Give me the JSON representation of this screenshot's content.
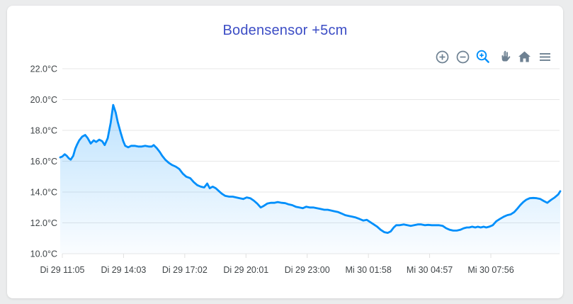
{
  "page": {
    "background": "#ebeced"
  },
  "card": {
    "background": "#ffffff"
  },
  "header": {
    "title": "Bodensensor +5cm",
    "title_color": "#3c4dc5"
  },
  "toolbar": {
    "icon_color": "#6E8192",
    "selected_color": "#008FFB",
    "icons": [
      {
        "name": "zoom-in-icon",
        "selected": false
      },
      {
        "name": "zoom-out-icon",
        "selected": false
      },
      {
        "name": "selection-zoom-icon",
        "selected": true
      },
      {
        "name": "pan-icon",
        "selected": false
      },
      {
        "name": "home-icon",
        "selected": false
      },
      {
        "name": "menu-icon",
        "selected": false
      }
    ]
  },
  "chart_data": {
    "type": "area",
    "title": "Bodensensor +5cm",
    "ylabel": "",
    "xlabel": "",
    "y_unit": "°C",
    "ylim": [
      10,
      22
    ],
    "y_tick_labels": [
      "22.0°C",
      "20.0°C",
      "18.0°C",
      "16.0°C",
      "14.0°C",
      "12.0°C",
      "10.0°C"
    ],
    "x_tick_labels": [
      "Di 29 11:05",
      "Di 29 14:03",
      "Di 29 17:02",
      "Di 29 20:01",
      "Di 29 23:00",
      "Mi 30 01:58",
      "Mi 30 04:57",
      "Mi 30 07:56"
    ],
    "grid": "horizontal",
    "legend": "none",
    "line_color": "#008FFB",
    "fill_gradient_top": "rgba(0,143,251,0.26)",
    "fill_gradient_bottom": "rgba(0,143,251,0.02)",
    "series": [
      {
        "name": "Bodensensor +5cm",
        "points": [
          [
            0,
            16.25
          ],
          [
            0.004,
            16.3
          ],
          [
            0.009,
            16.45
          ],
          [
            0.013,
            16.35
          ],
          [
            0.017,
            16.2
          ],
          [
            0.021,
            16.1
          ],
          [
            0.026,
            16.35
          ],
          [
            0.03,
            16.8
          ],
          [
            0.034,
            17.1
          ],
          [
            0.038,
            17.35
          ],
          [
            0.044,
            17.6
          ],
          [
            0.05,
            17.7
          ],
          [
            0.055,
            17.5
          ],
          [
            0.061,
            17.15
          ],
          [
            0.067,
            17.35
          ],
          [
            0.072,
            17.25
          ],
          [
            0.078,
            17.4
          ],
          [
            0.084,
            17.3
          ],
          [
            0.089,
            17.05
          ],
          [
            0.095,
            17.5
          ],
          [
            0.101,
            18.5
          ],
          [
            0.106,
            19.65
          ],
          [
            0.111,
            19.15
          ],
          [
            0.115,
            18.55
          ],
          [
            0.121,
            17.85
          ],
          [
            0.126,
            17.3
          ],
          [
            0.13,
            17.0
          ],
          [
            0.136,
            16.9
          ],
          [
            0.142,
            17.0
          ],
          [
            0.149,
            17.0
          ],
          [
            0.156,
            16.95
          ],
          [
            0.163,
            16.95
          ],
          [
            0.17,
            17.0
          ],
          [
            0.177,
            16.95
          ],
          [
            0.183,
            16.95
          ],
          [
            0.187,
            17.05
          ],
          [
            0.193,
            16.85
          ],
          [
            0.199,
            16.6
          ],
          [
            0.204,
            16.35
          ],
          [
            0.21,
            16.1
          ],
          [
            0.217,
            15.9
          ],
          [
            0.224,
            15.75
          ],
          [
            0.231,
            15.65
          ],
          [
            0.238,
            15.5
          ],
          [
            0.245,
            15.2
          ],
          [
            0.252,
            15.0
          ],
          [
            0.26,
            14.9
          ],
          [
            0.267,
            14.65
          ],
          [
            0.274,
            14.45
          ],
          [
            0.281,
            14.35
          ],
          [
            0.288,
            14.3
          ],
          [
            0.294,
            14.55
          ],
          [
            0.299,
            14.25
          ],
          [
            0.305,
            14.35
          ],
          [
            0.311,
            14.25
          ],
          [
            0.316,
            14.1
          ],
          [
            0.323,
            13.9
          ],
          [
            0.33,
            13.75
          ],
          [
            0.338,
            13.7
          ],
          [
            0.345,
            13.7
          ],
          [
            0.352,
            13.65
          ],
          [
            0.359,
            13.6
          ],
          [
            0.366,
            13.55
          ],
          [
            0.373,
            13.65
          ],
          [
            0.38,
            13.6
          ],
          [
            0.387,
            13.45
          ],
          [
            0.394,
            13.25
          ],
          [
            0.401,
            13.0
          ],
          [
            0.407,
            13.1
          ],
          [
            0.414,
            13.25
          ],
          [
            0.421,
            13.3
          ],
          [
            0.428,
            13.3
          ],
          [
            0.435,
            13.35
          ],
          [
            0.443,
            13.3
          ],
          [
            0.45,
            13.28
          ],
          [
            0.457,
            13.2
          ],
          [
            0.464,
            13.15
          ],
          [
            0.471,
            13.05
          ],
          [
            0.478,
            13.0
          ],
          [
            0.485,
            12.95
          ],
          [
            0.492,
            13.05
          ],
          [
            0.499,
            13.0
          ],
          [
            0.506,
            13.0
          ],
          [
            0.513,
            12.95
          ],
          [
            0.521,
            12.9
          ],
          [
            0.528,
            12.85
          ],
          [
            0.535,
            12.85
          ],
          [
            0.542,
            12.8
          ],
          [
            0.549,
            12.75
          ],
          [
            0.556,
            12.7
          ],
          [
            0.563,
            12.6
          ],
          [
            0.57,
            12.5
          ],
          [
            0.577,
            12.45
          ],
          [
            0.584,
            12.4
          ],
          [
            0.591,
            12.35
          ],
          [
            0.599,
            12.25
          ],
          [
            0.606,
            12.15
          ],
          [
            0.613,
            12.2
          ],
          [
            0.62,
            12.05
          ],
          [
            0.627,
            11.9
          ],
          [
            0.634,
            11.75
          ],
          [
            0.641,
            11.55
          ],
          [
            0.648,
            11.4
          ],
          [
            0.655,
            11.35
          ],
          [
            0.661,
            11.45
          ],
          [
            0.667,
            11.7
          ],
          [
            0.672,
            11.85
          ],
          [
            0.679,
            11.85
          ],
          [
            0.687,
            11.9
          ],
          [
            0.694,
            11.85
          ],
          [
            0.701,
            11.8
          ],
          [
            0.708,
            11.85
          ],
          [
            0.715,
            11.9
          ],
          [
            0.722,
            11.9
          ],
          [
            0.729,
            11.85
          ],
          [
            0.736,
            11.87
          ],
          [
            0.743,
            11.85
          ],
          [
            0.75,
            11.85
          ],
          [
            0.757,
            11.85
          ],
          [
            0.765,
            11.8
          ],
          [
            0.772,
            11.65
          ],
          [
            0.779,
            11.55
          ],
          [
            0.786,
            11.5
          ],
          [
            0.793,
            11.5
          ],
          [
            0.8,
            11.55
          ],
          [
            0.807,
            11.65
          ],
          [
            0.813,
            11.7
          ],
          [
            0.818,
            11.7
          ],
          [
            0.824,
            11.75
          ],
          [
            0.83,
            11.7
          ],
          [
            0.835,
            11.75
          ],
          [
            0.841,
            11.7
          ],
          [
            0.847,
            11.75
          ],
          [
            0.852,
            11.7
          ],
          [
            0.858,
            11.75
          ],
          [
            0.865,
            11.85
          ],
          [
            0.872,
            12.1
          ],
          [
            0.879,
            12.25
          ],
          [
            0.887,
            12.4
          ],
          [
            0.894,
            12.5
          ],
          [
            0.901,
            12.55
          ],
          [
            0.908,
            12.7
          ],
          [
            0.915,
            12.95
          ],
          [
            0.92,
            13.15
          ],
          [
            0.926,
            13.35
          ],
          [
            0.932,
            13.5
          ],
          [
            0.939,
            13.6
          ],
          [
            0.946,
            13.62
          ],
          [
            0.953,
            13.6
          ],
          [
            0.96,
            13.55
          ],
          [
            0.967,
            13.42
          ],
          [
            0.974,
            13.3
          ],
          [
            0.982,
            13.5
          ],
          [
            0.989,
            13.65
          ],
          [
            0.996,
            13.85
          ],
          [
            1,
            14.05
          ]
        ]
      }
    ]
  }
}
